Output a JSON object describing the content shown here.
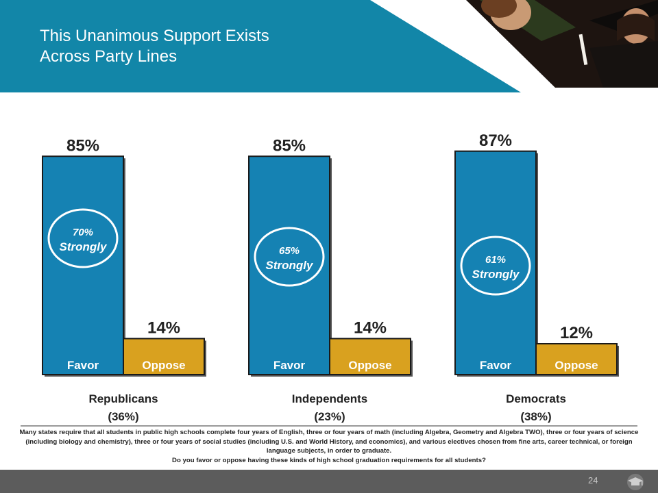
{
  "slide": {
    "title_line1": "This Unanimous Support Exists",
    "title_line2": "Across Party Lines",
    "page_number": "24"
  },
  "colors": {
    "header": "#1286a8",
    "favor": "#1582b3",
    "oppose": "#d9a11f",
    "text": "#222222"
  },
  "icons": {
    "photo": "graduates-photo",
    "footer": "graduation-cap-icon"
  },
  "chart_data": {
    "type": "bar",
    "ylim": [
      0,
      100
    ],
    "groups": [
      {
        "name": "Republicans",
        "share": "(36%)",
        "favor": 85,
        "oppose": 14,
        "favor_label": "85%",
        "oppose_label": "14%",
        "strongly_label": "70%",
        "strongly_text": "Strongly"
      },
      {
        "name": "Independents",
        "share": "(23%)",
        "favor": 85,
        "oppose": 14,
        "favor_label": "85%",
        "oppose_label": "14%",
        "strongly_label": "65%",
        "strongly_text": "Strongly"
      },
      {
        "name": "Democrats",
        "share": "(38%)",
        "favor": 87,
        "oppose": 12,
        "favor_label": "87%",
        "oppose_label": "12%",
        "strongly_label": "61%",
        "strongly_text": "Strongly"
      }
    ],
    "bar_labels": {
      "favor": "Favor",
      "oppose": "Oppose"
    }
  },
  "description": {
    "text": "Many states require that all students in public high schools complete four years of English, three or four years of math (including Algebra, Geometry and Algebra TWO), three or four years of science (including biology and chemistry), three or four years of social studies (including U.S. and World History, and economics), and various electives chosen from fine arts, career technical, or foreign language subjects, in order to graduate.",
    "question": "Do you favor or oppose having these kinds of high school graduation requirements for all students?"
  }
}
